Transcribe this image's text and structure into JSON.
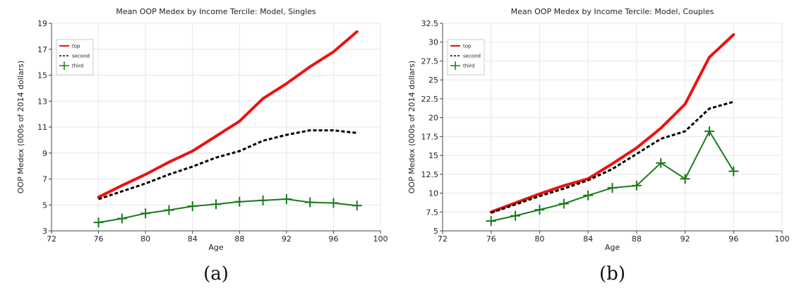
{
  "chart_data": [
    {
      "type": "line",
      "title": "Mean OOP Medex by Income Tercile: Model, Singles",
      "xlabel": "Age",
      "ylabel": "OOP Medex (000s of 2014 dollars)",
      "xlim": [
        72,
        100
      ],
      "ylim": [
        3,
        19
      ],
      "xticks": [
        72,
        76,
        80,
        84,
        88,
        92,
        96,
        100
      ],
      "yticks": [
        3,
        5,
        7,
        9,
        11,
        13,
        15,
        17,
        19
      ],
      "ytick_labels": [
        "3",
        "5",
        "7",
        "9",
        "11",
        "13",
        "15",
        "17",
        "19"
      ],
      "grid": true,
      "legend_position": "top-left",
      "caption": "(a)",
      "series": [
        {
          "name": "top",
          "color": "#ee1111",
          "style": "solid-thick",
          "x": [
            76,
            78,
            80,
            82,
            84,
            86,
            88,
            90,
            92,
            94,
            96,
            98
          ],
          "y": [
            5.6,
            6.5,
            7.35,
            8.3,
            9.15,
            10.3,
            11.45,
            13.2,
            14.35,
            15.65,
            16.8,
            18.35
          ]
        },
        {
          "name": "second",
          "color": "#000000",
          "style": "dashed",
          "x": [
            76,
            78,
            80,
            82,
            84,
            86,
            88,
            90,
            92,
            94,
            96,
            98
          ],
          "y": [
            5.45,
            6.05,
            6.65,
            7.35,
            7.95,
            8.65,
            9.15,
            9.95,
            10.4,
            10.75,
            10.75,
            10.55
          ]
        },
        {
          "name": "third",
          "color": "#1a7a1a",
          "style": "solid-plus",
          "x": [
            76,
            78,
            80,
            82,
            84,
            86,
            88,
            90,
            92,
            94,
            96,
            98
          ],
          "y": [
            3.65,
            3.95,
            4.35,
            4.6,
            4.9,
            5.05,
            5.25,
            5.35,
            5.45,
            5.2,
            5.15,
            4.95
          ]
        }
      ]
    },
    {
      "type": "line",
      "title": "Mean OOP Medex by Income Tercile: Model, Couples",
      "xlabel": "Age",
      "ylabel": "OOP Medex (000s of 2014 dollars)",
      "xlim": [
        72,
        100
      ],
      "ylim": [
        5,
        32.5
      ],
      "xticks": [
        72,
        76,
        80,
        84,
        88,
        92,
        96,
        100
      ],
      "yticks": [
        5,
        7.5,
        10,
        12.5,
        15,
        17.5,
        20,
        22.5,
        25,
        27.5,
        30,
        32.5
      ],
      "ytick_labels": [
        "5",
        "7.5",
        "10",
        "12.5",
        "15",
        "17.5",
        "20",
        "22.5",
        "25",
        "27.5",
        "30",
        "32.5"
      ],
      "grid": true,
      "legend_position": "top-left",
      "caption": "(b)",
      "series": [
        {
          "name": "top",
          "color": "#ee1111",
          "style": "solid-thick",
          "x": [
            76,
            78,
            80,
            82,
            84,
            86,
            88,
            90,
            92,
            94,
            96
          ],
          "y": [
            7.5,
            8.7,
            9.9,
            11.0,
            11.9,
            13.9,
            16.0,
            18.6,
            21.8,
            28.0,
            31.0
          ]
        },
        {
          "name": "second",
          "color": "#000000",
          "style": "dashed",
          "x": [
            76,
            78,
            80,
            82,
            84,
            86,
            88,
            90,
            92,
            94,
            96
          ],
          "y": [
            7.4,
            8.5,
            9.6,
            10.6,
            11.7,
            13.2,
            15.2,
            17.2,
            18.2,
            21.2,
            22.1
          ]
        },
        {
          "name": "third",
          "color": "#1a7a1a",
          "style": "solid-plus",
          "x": [
            76,
            78,
            80,
            82,
            84,
            86,
            88,
            90,
            92,
            94,
            96
          ],
          "y": [
            6.3,
            7.0,
            7.8,
            8.6,
            9.7,
            10.7,
            11.0,
            14.0,
            11.9,
            18.2,
            12.9
          ]
        }
      ]
    }
  ]
}
